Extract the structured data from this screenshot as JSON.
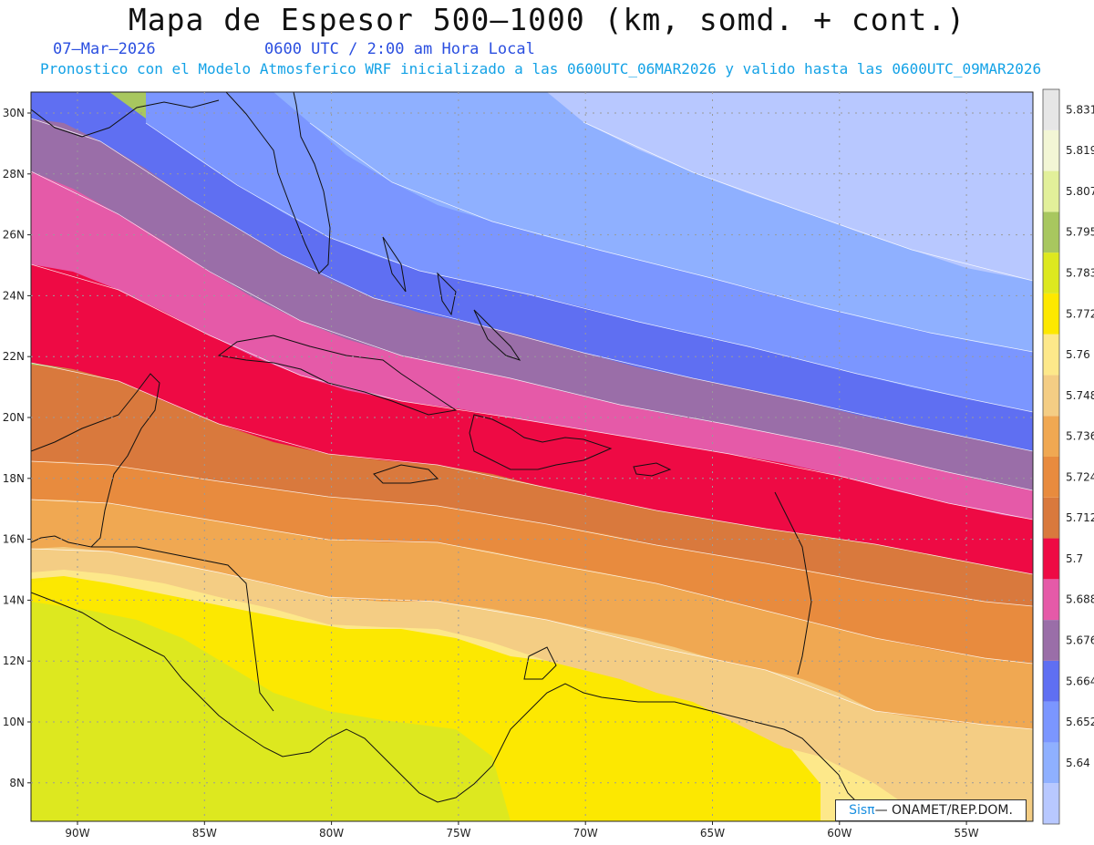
{
  "header": {
    "title": "Mapa de Espesor 500—1000 (km, somd. + cont.)",
    "date": "07—Mar—2026",
    "time": "0600 UTC / 2:00 am Hora Local",
    "description": "Pronostico con el Modelo Atmosferico WRF inicializado a las 0600UTC_06MAR2026 y valido hasta las  0600UTC_09MAR2026"
  },
  "axes": {
    "lat_labels": [
      "30N",
      "28N",
      "26N",
      "24N",
      "22N",
      "20N",
      "18N",
      "16N",
      "14N",
      "12N",
      "10N",
      "8N"
    ],
    "lon_labels": [
      "90W",
      "85W",
      "80W",
      "75W",
      "70W",
      "65W",
      "60W",
      "55W"
    ]
  },
  "legend": {
    "levels": [
      {
        "label": "",
        "color": "#b8c8ff"
      },
      {
        "label": "5.64",
        "color": "#8fb0ff"
      },
      {
        "label": "5.652",
        "color": "#7b96ff"
      },
      {
        "label": "5.664",
        "color": "#5f6ff2"
      },
      {
        "label": "5.676",
        "color": "#9a6ea8"
      },
      {
        "label": "5.688",
        "color": "#e55aa8"
      },
      {
        "label": "5.7",
        "color": "#ee0a44"
      },
      {
        "label": "5.712",
        "color": "#d9793d"
      },
      {
        "label": "5.724",
        "color": "#e88b3e"
      },
      {
        "label": "5.736",
        "color": "#f0a852"
      },
      {
        "label": "5.748",
        "color": "#f4cd84"
      },
      {
        "label": "5.76",
        "color": "#fde88a"
      },
      {
        "label": "5.772",
        "color": "#fde800"
      },
      {
        "label": "5.783",
        "color": "#dde81f"
      },
      {
        "label": "5.795",
        "color": "#a8c75f"
      },
      {
        "label": "5.807",
        "color": "#e2f09a"
      },
      {
        "label": "5.819",
        "color": "#f3f6d5"
      },
      {
        "label": "5.831",
        "color": "#e6e6e6"
      }
    ]
  },
  "credit": {
    "brand": "Sisπ",
    "text": "— ONAMET/REP.DOM."
  }
}
